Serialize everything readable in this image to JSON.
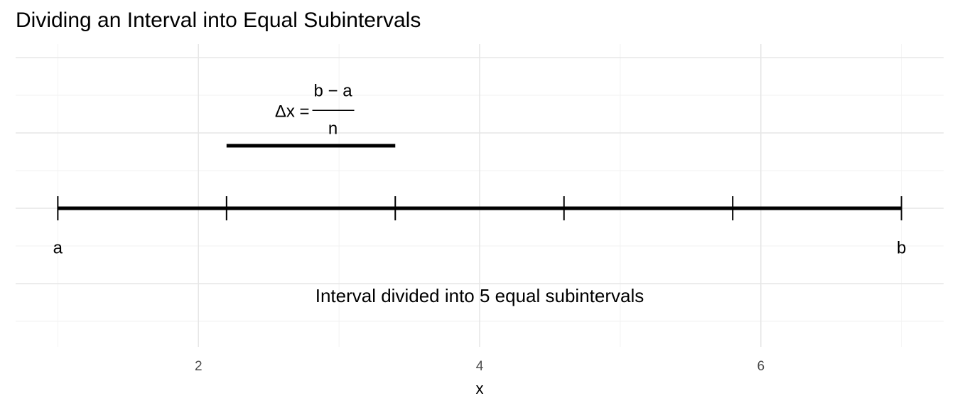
{
  "chart_data": {
    "type": "interval",
    "title": "Dividing an Interval into Equal Subintervals",
    "x_label": "x",
    "xlim": [
      0.7,
      7.3
    ],
    "xticks": [
      2,
      4,
      6
    ],
    "xminor": [
      1,
      3,
      5,
      7
    ],
    "ylim": [
      -0.184,
      0.218
    ],
    "yticks": [
      -0.1,
      0,
      0.1,
      0.2
    ],
    "yminor": [
      -0.15,
      -0.05,
      0.05,
      0.15
    ],
    "grid": true,
    "color": "#000000",
    "interval": {
      "start": 1,
      "end": 7,
      "y": 0,
      "points": [
        1,
        2.2,
        3.4,
        4.6,
        5.8,
        7
      ]
    },
    "subinterval": {
      "start": 2.2,
      "end": 3.4,
      "y": 0.083
    },
    "endpoint_labels": [
      {
        "text": "a",
        "x": 1,
        "y": -0.054
      },
      {
        "text": "b",
        "x": 7,
        "y": -0.054
      }
    ],
    "annotation": {
      "text": "Interval divided into 5 equal subintervals",
      "x": 4,
      "y": -0.118
    },
    "formula": {
      "lhs": "Δx =",
      "numerator": "b − a",
      "denominator": "n",
      "x": 2.8,
      "y": 0.13
    }
  }
}
